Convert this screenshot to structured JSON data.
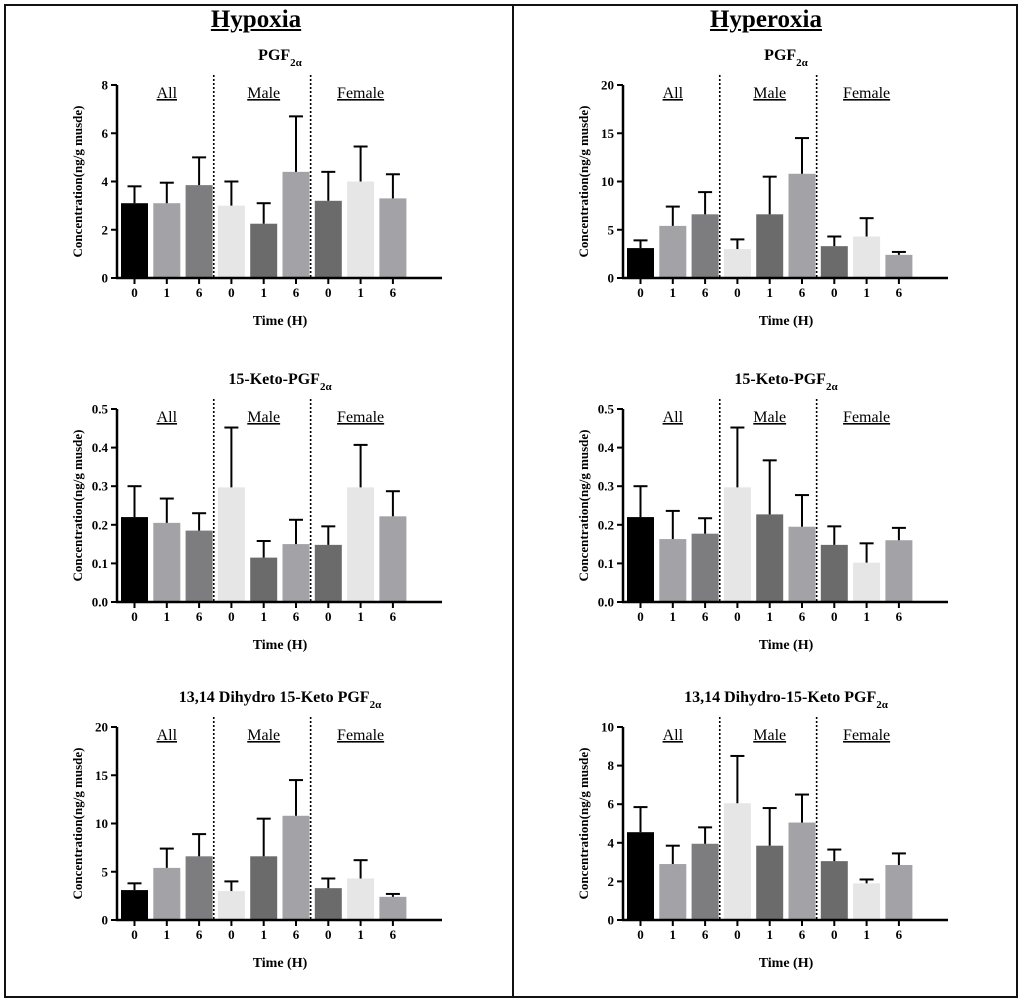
{
  "columns": {
    "left_title": "Hypoxia",
    "right_title": "Hyperoxia"
  },
  "colors": {
    "black": "#000000",
    "gray": "#a3a3a7",
    "dark": "#7d7d7f",
    "light": "#e6e6e6",
    "med": "#6b6b6b",
    "divider": "#111111"
  },
  "chart_data": [
    {
      "id": "hypoxia-pgf2a",
      "panel": "Hypoxia",
      "type": "bar",
      "title": "PGF",
      "title_sub": "2α",
      "ylabel": "Concentration(ng/g musde)",
      "xlabel": "Time (H)",
      "ylim": [
        0,
        8
      ],
      "yticks": [
        "0",
        "2",
        "4",
        "6",
        "8"
      ],
      "groups": [
        "All",
        "Male",
        "Female"
      ],
      "categories": [
        "0",
        "1",
        "6",
        "0",
        "1",
        "6",
        "0",
        "1",
        "6"
      ],
      "values": [
        3.1,
        3.1,
        3.85,
        3.0,
        2.25,
        4.4,
        3.2,
        4.0,
        3.3
      ],
      "errors": [
        0.7,
        0.85,
        1.15,
        1.0,
        0.85,
        2.3,
        1.2,
        1.45,
        1.0
      ],
      "bar_colors": [
        "#000000",
        "#a3a3a7",
        "#7d7d7f",
        "#e6e6e6",
        "#6b6b6b",
        "#a3a3a7",
        "#6b6b6b",
        "#e6e6e6",
        "#a3a3a7"
      ]
    },
    {
      "id": "hyperoxia-pgf2a",
      "panel": "Hyperoxia",
      "type": "bar",
      "title": "PGF",
      "title_sub": "2α",
      "ylabel": "Concentration(ng/g musde)",
      "xlabel": "Time (H)",
      "ylim": [
        0,
        20
      ],
      "yticks": [
        "0",
        "5",
        "10",
        "15",
        "20"
      ],
      "groups": [
        "All",
        "Male",
        "Female"
      ],
      "categories": [
        "0",
        "1",
        "6",
        "0",
        "1",
        "6",
        "0",
        "1",
        "6"
      ],
      "values": [
        3.1,
        5.4,
        6.6,
        3.0,
        6.6,
        10.8,
        3.3,
        4.3,
        2.4
      ],
      "errors": [
        0.8,
        2.0,
        2.3,
        1.0,
        3.9,
        3.7,
        1.0,
        1.9,
        0.3
      ],
      "bar_colors": [
        "#000000",
        "#a3a3a7",
        "#7d7d7f",
        "#e6e6e6",
        "#6b6b6b",
        "#a3a3a7",
        "#6b6b6b",
        "#e6e6e6",
        "#a3a3a7"
      ]
    },
    {
      "id": "hypoxia-15keto",
      "panel": "Hypoxia",
      "type": "bar",
      "title": "15-Keto-PGF",
      "title_sub": "2α",
      "ylabel": "Concentration(ng/g musde)",
      "xlabel": "Time (H)",
      "ylim": [
        0,
        0.5
      ],
      "yticks": [
        "0.0",
        "0.1",
        "0.2",
        "0.3",
        "0.4",
        "0.5"
      ],
      "groups": [
        "All",
        "Male",
        "Female"
      ],
      "categories": [
        "0",
        "1",
        "6",
        "0",
        "1",
        "6",
        "0",
        "1",
        "6"
      ],
      "values": [
        0.22,
        0.205,
        0.185,
        0.297,
        0.115,
        0.15,
        0.148,
        0.297,
        0.222
      ],
      "errors": [
        0.08,
        0.063,
        0.045,
        0.155,
        0.043,
        0.063,
        0.048,
        0.11,
        0.065
      ],
      "bar_colors": [
        "#000000",
        "#a3a3a7",
        "#7d7d7f",
        "#e6e6e6",
        "#6b6b6b",
        "#a3a3a7",
        "#6b6b6b",
        "#e6e6e6",
        "#a3a3a7"
      ]
    },
    {
      "id": "hyperoxia-15keto",
      "panel": "Hyperoxia",
      "type": "bar",
      "title": "15-Keto-PGF",
      "title_sub": "2α",
      "ylabel": "Concentration(ng/g musde)",
      "xlabel": "Time (H)",
      "ylim": [
        0,
        0.5
      ],
      "yticks": [
        "0.0",
        "0.1",
        "0.2",
        "0.3",
        "0.4",
        "0.5"
      ],
      "groups": [
        "All",
        "Male",
        "Female"
      ],
      "categories": [
        "0",
        "1",
        "6",
        "0",
        "1",
        "6",
        "0",
        "1",
        "6"
      ],
      "values": [
        0.22,
        0.163,
        0.177,
        0.297,
        0.227,
        0.195,
        0.148,
        0.102,
        0.16
      ],
      "errors": [
        0.08,
        0.073,
        0.04,
        0.155,
        0.14,
        0.082,
        0.048,
        0.05,
        0.032
      ],
      "bar_colors": [
        "#000000",
        "#a3a3a7",
        "#7d7d7f",
        "#e6e6e6",
        "#6b6b6b",
        "#a3a3a7",
        "#6b6b6b",
        "#e6e6e6",
        "#a3a3a7"
      ]
    },
    {
      "id": "hypoxia-dihydro",
      "panel": "Hypoxia",
      "type": "bar",
      "title": "13,14 Dihydro 15-Keto PGF",
      "title_sub": "2α",
      "ylabel": "Concentration(ng/g musde)",
      "xlabel": "Time (H)",
      "ylim": [
        0,
        20
      ],
      "yticks": [
        "0",
        "5",
        "10",
        "15",
        "20"
      ],
      "groups": [
        "All",
        "Male",
        "Female"
      ],
      "categories": [
        "0",
        "1",
        "6",
        "0",
        "1",
        "6",
        "0",
        "1",
        "6"
      ],
      "values": [
        3.1,
        5.4,
        6.6,
        3.0,
        6.6,
        10.8,
        3.3,
        4.3,
        2.4
      ],
      "errors": [
        0.7,
        2.0,
        2.3,
        1.0,
        3.9,
        3.7,
        1.0,
        1.9,
        0.3
      ],
      "bar_colors": [
        "#000000",
        "#a3a3a7",
        "#7d7d7f",
        "#e6e6e6",
        "#6b6b6b",
        "#a3a3a7",
        "#6b6b6b",
        "#e6e6e6",
        "#a3a3a7"
      ]
    },
    {
      "id": "hyperoxia-dihydro",
      "panel": "Hyperoxia",
      "type": "bar",
      "title": "13,14 Dihydro-15-Keto PGF",
      "title_sub": "2α",
      "ylabel": "Concentration(ng/g musde)",
      "xlabel": "Time (H)",
      "ylim": [
        0,
        10
      ],
      "yticks": [
        "0",
        "2",
        "4",
        "6",
        "8",
        "10"
      ],
      "groups": [
        "All",
        "Male",
        "Female"
      ],
      "categories": [
        "0",
        "1",
        "6",
        "0",
        "1",
        "6",
        "0",
        "1",
        "6"
      ],
      "values": [
        4.55,
        2.9,
        3.95,
        6.05,
        3.85,
        5.05,
        3.05,
        1.9,
        2.85
      ],
      "errors": [
        1.3,
        0.95,
        0.85,
        2.45,
        1.95,
        1.45,
        0.6,
        0.2,
        0.6
      ],
      "bar_colors": [
        "#000000",
        "#a3a3a7",
        "#7d7d7f",
        "#e6e6e6",
        "#6b6b6b",
        "#a3a3a7",
        "#6b6b6b",
        "#e6e6e6",
        "#a3a3a7"
      ]
    }
  ]
}
